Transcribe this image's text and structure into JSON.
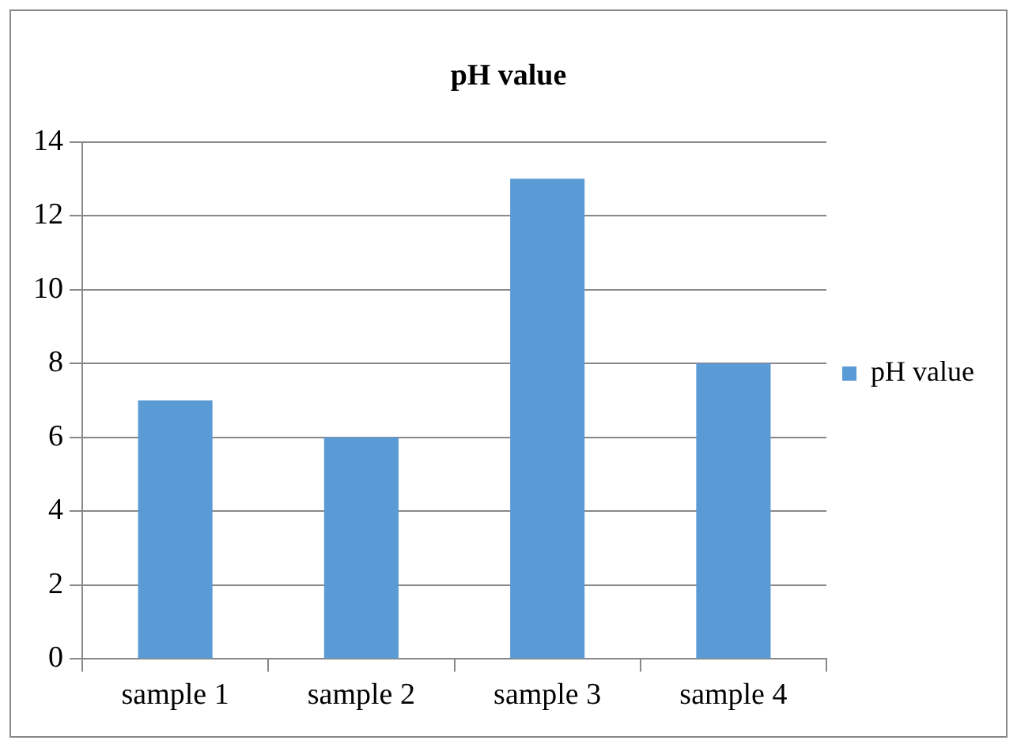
{
  "chart_data": {
    "type": "bar",
    "title": "pH value",
    "categories": [
      "sample 1",
      "sample 2",
      "sample 3",
      "sample 4"
    ],
    "series": [
      {
        "name": "pH value",
        "color": "#5b9bd5",
        "values": [
          7,
          6,
          13,
          8
        ]
      }
    ],
    "ylim": [
      0,
      14
    ],
    "yticks": [
      0,
      2,
      4,
      6,
      8,
      10,
      12,
      14
    ],
    "grid": "y",
    "legend": "right"
  }
}
